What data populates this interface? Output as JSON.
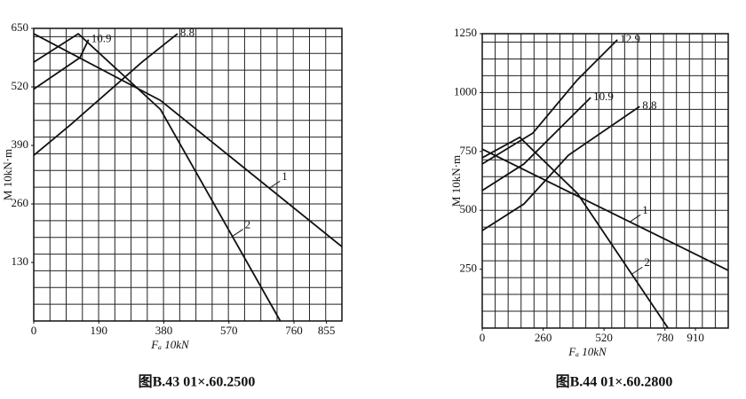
{
  "chart_data": [
    {
      "type": "line",
      "caption": "图B.43   01×.60.2500",
      "xlabel": "Fₐ   10kN",
      "ylabel": "M   10kN·m",
      "xlim": [
        0,
        900
      ],
      "ylim": [
        0,
        650
      ],
      "xticks": [
        0,
        190,
        380,
        570,
        760,
        855
      ],
      "yticks": [
        130,
        260,
        390,
        520,
        650
      ],
      "grid": true,
      "series": [
        {
          "name": "1",
          "color": "#111111",
          "x": [
            0,
            370,
            900
          ],
          "values": [
            638,
            490,
            165
          ]
        },
        {
          "name": "2",
          "color": "#111111",
          "x": [
            0,
            130,
            370,
            720
          ],
          "values": [
            575,
            638,
            470,
            0
          ]
        },
        {
          "name": "10.9",
          "color": "#111111",
          "x": [
            0,
            135,
            160
          ],
          "values": [
            515,
            585,
            625
          ]
        },
        {
          "name": "8.8",
          "color": "#111111",
          "x": [
            0,
            109,
            316,
            420
          ],
          "values": [
            368,
            437,
            575,
            638
          ]
        }
      ]
    },
    {
      "type": "line",
      "caption": "图B.44   01×.60.2800",
      "xlabel": "Fₐ   10kN",
      "ylabel": "M   10kN·m",
      "xlim": [
        0,
        1050
      ],
      "ylim": [
        0,
        1250
      ],
      "xticks": [
        0,
        260,
        520,
        780,
        910
      ],
      "yticks": [
        250,
        500,
        750,
        1000,
        1250
      ],
      "grid": true,
      "series": [
        {
          "name": "1",
          "color": "#111111",
          "x": [
            0,
            1050
          ],
          "values": [
            760,
            245
          ]
        },
        {
          "name": "2",
          "color": "#111111",
          "x": [
            0,
            160,
            406,
            793
          ],
          "values": [
            723,
            810,
            572,
            0
          ]
        },
        {
          "name": "12.9",
          "color": "#111111",
          "x": [
            0,
            216,
            406,
            577
          ],
          "values": [
            697,
            828,
            1054,
            1224
          ]
        },
        {
          "name": "10.9",
          "color": "#111111",
          "x": [
            0,
            178,
            463
          ],
          "values": [
            584,
            697,
            979
          ]
        },
        {
          "name": "8.8",
          "color": "#111111",
          "x": [
            0,
            178,
            368,
            672
          ],
          "values": [
            414,
            527,
            734,
            941
          ]
        }
      ]
    }
  ]
}
